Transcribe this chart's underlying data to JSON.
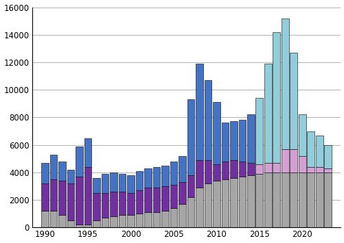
{
  "years": [
    1990,
    1991,
    1992,
    1993,
    1994,
    1995,
    1996,
    1997,
    1998,
    1999,
    2000,
    2001,
    2002,
    2003,
    2004,
    2005,
    2006,
    2007,
    2008,
    2009,
    2010,
    2011,
    2012,
    2013,
    2014,
    2015,
    2016,
    2017,
    2018,
    2019,
    2020,
    2021,
    2022,
    2023
  ],
  "gray": [
    1200,
    1200,
    900,
    500,
    200,
    200,
    500,
    700,
    800,
    900,
    900,
    1000,
    1100,
    1100,
    1200,
    1400,
    1700,
    2200,
    2900,
    3200,
    3400,
    3500,
    3600,
    3700,
    3800,
    3900,
    4000,
    4000,
    4000,
    4000,
    4000,
    4000,
    4000,
    4000
  ],
  "purple": [
    2000,
    2300,
    2500,
    2700,
    3500,
    4200,
    2000,
    1800,
    1800,
    1700,
    1600,
    1700,
    1800,
    1800,
    1800,
    1700,
    1600,
    1600,
    2000,
    1700,
    1200,
    1300,
    1300,
    1100,
    900,
    700,
    700,
    700,
    1700,
    1700,
    1200,
    400,
    400,
    300
  ],
  "blue": [
    1500,
    1800,
    1400,
    1000,
    2200,
    2100,
    1100,
    1400,
    1400,
    1300,
    1300,
    1400,
    1400,
    1500,
    1500,
    1700,
    1900,
    5500,
    7000,
    5800,
    4500,
    2800,
    2800,
    3000,
    3500,
    4800,
    7200,
    9500,
    9500,
    7000,
    3000,
    2600,
    2300,
    1700
  ],
  "blue_dark": "#4472C4",
  "blue_light": "#92CDDC",
  "purple_dark": "#7030A0",
  "pink_light": "#D4A0D4",
  "gray_color": "#A6A6A6",
  "transition_year": 2014,
  "ylim": [
    0,
    16000
  ],
  "yticks": [
    0,
    2000,
    4000,
    6000,
    8000,
    10000,
    12000,
    14000,
    16000
  ],
  "xtick_positions": [
    1990,
    1995,
    2000,
    2005,
    2010,
    2015,
    2020
  ],
  "xtick_labels": [
    "1990",
    "1995",
    "2000",
    "2005",
    "2010",
    "2015",
    "2020"
  ],
  "background_color": "#ffffff",
  "grid_color": "#b0b0b0",
  "bar_width": 0.85
}
